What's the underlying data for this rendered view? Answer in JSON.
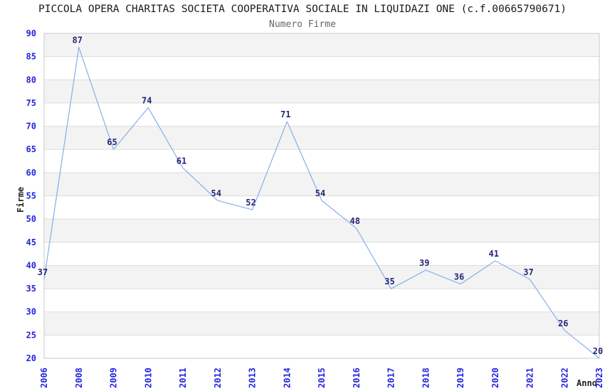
{
  "chart_data": {
    "type": "line",
    "title": "PICCOLA OPERA CHARITAS SOCIETA COOPERATIVA SOCIALE IN LIQUIDAZI ONE (c.f.00665790671)",
    "subtitle": "Numero Firme",
    "xlabel": "Anno",
    "ylabel": "Firme",
    "categories": [
      "2006",
      "2008",
      "2009",
      "2010",
      "2011",
      "2012",
      "2013",
      "2014",
      "2015",
      "2016",
      "2017",
      "2018",
      "2019",
      "2020",
      "2021",
      "2022",
      "2023"
    ],
    "values": [
      37,
      87,
      65,
      74,
      61,
      54,
      52,
      71,
      54,
      48,
      35,
      39,
      36,
      41,
      37,
      26,
      20
    ],
    "ylim": [
      20,
      90
    ],
    "ytick_step": 5,
    "grid": "horizontal-bands",
    "legend": "none",
    "markers": "none",
    "colors": {
      "line": "#85B0E8",
      "data_label": "#262678",
      "tick_label": "#2424E0",
      "band": "#F3F3F3",
      "gridline": "#DDDDDD",
      "plot_border": "#C9C9C9",
      "title": "#1A1A1A",
      "subtitle": "#666666",
      "axis_title": "#222222"
    }
  }
}
